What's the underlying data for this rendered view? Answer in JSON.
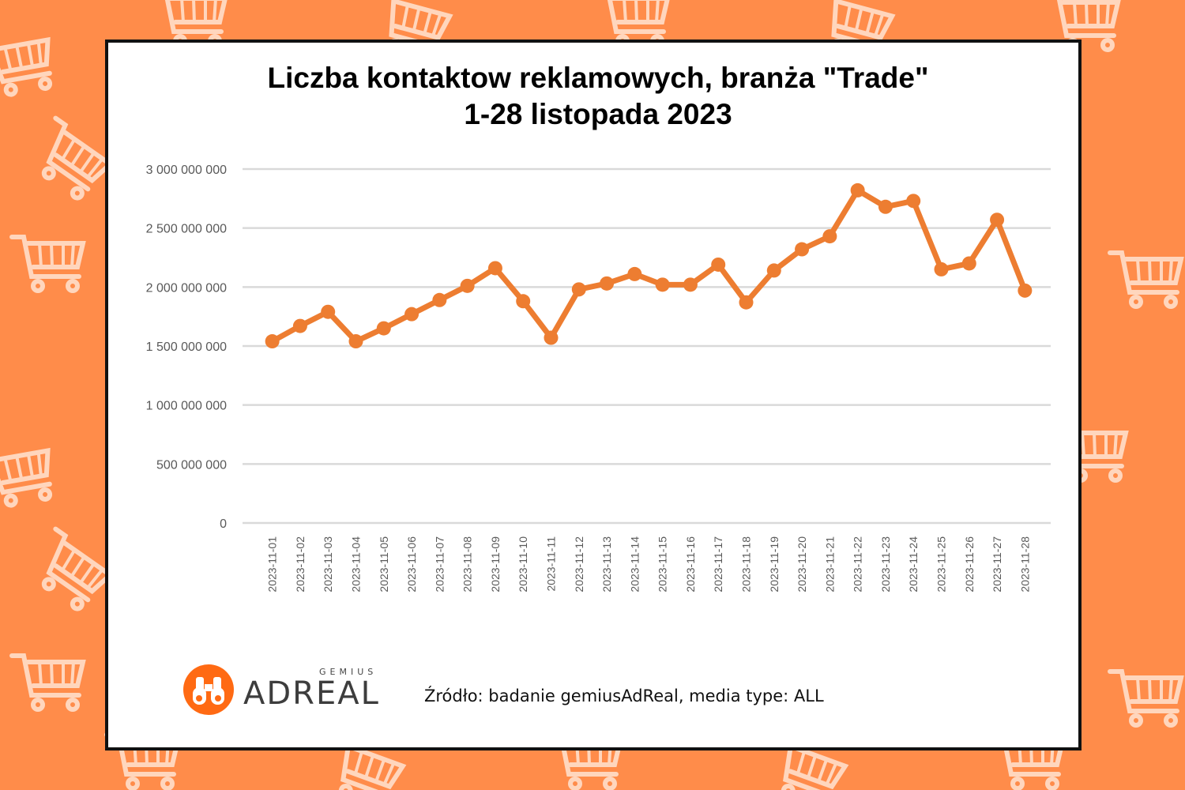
{
  "theme": {
    "background": "#ff8c4a",
    "pattern_color": "#ffd6bd",
    "line_color": "#ed7d31",
    "grid_color": "#d9d9d9",
    "logo_color": "#ff6a13"
  },
  "decoration": {
    "pattern_icon": "shopping-cart-icon"
  },
  "chart_data": {
    "type": "line",
    "title_lines": [
      "Liczba kontaktow reklamowych, branża \"Trade\"",
      "1-28 listopada 2023"
    ],
    "xlabel": "",
    "ylabel": "",
    "ylim": [
      0,
      3000000000
    ],
    "yticks": [
      0,
      500000000,
      1000000000,
      1500000000,
      2000000000,
      2500000000,
      3000000000
    ],
    "ytick_labels": [
      "0",
      "500 000 000",
      "1 000 000 000",
      "1 500 000 000",
      "2 000 000 000",
      "2 500 000 000",
      "3 000 000 000"
    ],
    "grid": true,
    "legend": "none",
    "categories": [
      "2023-11-01",
      "2023-11-02",
      "2023-11-03",
      "2023-11-04",
      "2023-11-05",
      "2023-11-06",
      "2023-11-07",
      "2023-11-08",
      "2023-11-09",
      "2023-11-10",
      "2023-11-11",
      "2023-11-12",
      "2023-11-13",
      "2023-11-14",
      "2023-11-15",
      "2023-11-16",
      "2023-11-17",
      "2023-11-18",
      "2023-11-19",
      "2023-11-20",
      "2023-11-21",
      "2023-11-22",
      "2023-11-23",
      "2023-11-24",
      "2023-11-25",
      "2023-11-26",
      "2023-11-27",
      "2023-11-28"
    ],
    "series": [
      {
        "values": [
          1540000000,
          1670000000,
          1790000000,
          1540000000,
          1650000000,
          1770000000,
          1890000000,
          2010000000,
          2160000000,
          1880000000,
          1570000000,
          1980000000,
          2030000000,
          2110000000,
          2020000000,
          2020000000,
          2190000000,
          1870000000,
          2140000000,
          2320000000,
          2430000000,
          2820000000,
          2680000000,
          2730000000,
          2150000000,
          2200000000,
          2570000000,
          1970000000
        ]
      }
    ]
  },
  "footer": {
    "logo_small": "GEMIUS",
    "logo_text": "ADREAL",
    "source": "Źródło: badanie gemiusAdReal, media type: ALL"
  }
}
